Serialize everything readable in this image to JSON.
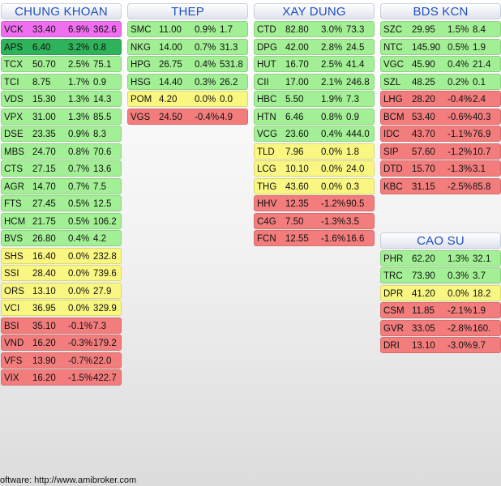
{
  "columns": [
    {
      "groups": [
        {
          "title": "CHUNG KHOAN",
          "rows": [
            [
              "VCK",
              "33.40",
              "6.9%",
              "362.6",
              "m"
            ],
            [
              "APS",
              "6.40",
              "3.2%",
              "0.8",
              "g-dark"
            ],
            [
              "TCX",
              "50.70",
              "2.5%",
              "75.1",
              "g"
            ],
            [
              "TCI",
              "8.75",
              "1.7%",
              "0.9",
              "g"
            ],
            [
              "VDS",
              "15.30",
              "1.3%",
              "14.3",
              "g"
            ],
            [
              "VPX",
              "31.00",
              "1.3%",
              "85.5",
              "g"
            ],
            [
              "DSE",
              "23.35",
              "0.9%",
              "8.3",
              "g"
            ],
            [
              "MBS",
              "24.70",
              "0.8%",
              "70.6",
              "g"
            ],
            [
              "CTS",
              "27.15",
              "0.7%",
              "13.6",
              "g"
            ],
            [
              "AGR",
              "14.70",
              "0.7%",
              "7.5",
              "g"
            ],
            [
              "FTS",
              "27.45",
              "0.5%",
              "12.5",
              "g"
            ],
            [
              "HCM",
              "21.75",
              "0.5%",
              "106.2",
              "g"
            ],
            [
              "BVS",
              "26.80",
              "0.4%",
              "4.2",
              "g"
            ],
            [
              "SHS",
              "16.40",
              "0.0%",
              "232.8",
              "y"
            ],
            [
              "SSI",
              "28.40",
              "0.0%",
              "739.6",
              "y"
            ],
            [
              "ORS",
              "13.10",
              "0.0%",
              "27.9",
              "y"
            ],
            [
              "VCI",
              "36.95",
              "0.0%",
              "329.9",
              "y"
            ],
            [
              "BSI",
              "35.10",
              "-0.1%",
              "7.3",
              "r"
            ],
            [
              "VND",
              "16.20",
              "-0.3%",
              "179.2",
              "r"
            ],
            [
              "VFS",
              "13.90",
              "-0.7%",
              "22.0",
              "r"
            ],
            [
              "VIX",
              "16.20",
              "-1.5%",
              "422.7",
              "r"
            ]
          ]
        }
      ]
    },
    {
      "groups": [
        {
          "title": "THEP",
          "rows": [
            [
              "SMC",
              "11.00",
              "0.9%",
              "1.7",
              "g"
            ],
            [
              "NKG",
              "14.00",
              "0.7%",
              "31.3",
              "g"
            ],
            [
              "HPG",
              "26.75",
              "0.4%",
              "531.8",
              "g"
            ],
            [
              "HSG",
              "14.40",
              "0.3%",
              "26.2",
              "g"
            ],
            [
              "POM",
              "4.20",
              "0.0%",
              "0.0",
              "y"
            ],
            [
              "VGS",
              "24.50",
              "-0.4%",
              "4.9",
              "r"
            ]
          ]
        }
      ]
    },
    {
      "groups": [
        {
          "title": "XAY DUNG",
          "rows": [
            [
              "CTD",
              "82.80",
              "3.0%",
              "73.3",
              "g"
            ],
            [
              "DPG",
              "42.00",
              "2.8%",
              "24.5",
              "g"
            ],
            [
              "HUT",
              "16.70",
              "2.5%",
              "41.4",
              "g"
            ],
            [
              "CII",
              "17.00",
              "2.1%",
              "246.8",
              "g"
            ],
            [
              "HBC",
              "5.50",
              "1.9%",
              "7.3",
              "g"
            ],
            [
              "HTN",
              "6.46",
              "0.8%",
              "0.9",
              "g"
            ],
            [
              "VCG",
              "23.60",
              "0.4%",
              "444.0",
              "g"
            ],
            [
              "TLD",
              "7.96",
              "0.0%",
              "1.8",
              "y"
            ],
            [
              "LCG",
              "10.10",
              "0.0%",
              "24.0",
              "y"
            ],
            [
              "THG",
              "43.60",
              "0.0%",
              "0.3",
              "y"
            ],
            [
              "HHV",
              "12.35",
              "-1.2%",
              "90.5",
              "r"
            ],
            [
              "C4G",
              "7.50",
              "-1.3%",
              "3.5",
              "r"
            ],
            [
              "FCN",
              "12.55",
              "-1.6%",
              "16.6",
              "r"
            ]
          ]
        }
      ]
    },
    {
      "groups": [
        {
          "title": "BDS KCN",
          "rows": [
            [
              "SZC",
              "29.95",
              "1.5%",
              "8.4",
              "g"
            ],
            [
              "NTC",
              "145.90",
              "0.5%",
              "1.9",
              "g"
            ],
            [
              "VGC",
              "45.90",
              "0.4%",
              "21.4",
              "g"
            ],
            [
              "SZL",
              "48.25",
              "0.2%",
              "0.1",
              "g"
            ],
            [
              "LHG",
              "28.20",
              "-0.4%",
              "2.4",
              "r"
            ],
            [
              "BCM",
              "53.40",
              "-0.6%",
              "40.3",
              "r"
            ],
            [
              "IDC",
              "43.70",
              "-1.1%",
              "76.9",
              "r"
            ],
            [
              "SIP",
              "57.60",
              "-1.2%",
              "10.7",
              "r"
            ],
            [
              "DTD",
              "15.70",
              "-1.3%",
              "3.1",
              "r"
            ],
            [
              "KBC",
              "31.15",
              "-2.5%",
              "85.8",
              "r"
            ]
          ]
        },
        {
          "title": "CAO SU",
          "rows": [
            [
              "PHR",
              "62.20",
              "1.3%",
              "32.1",
              "g"
            ],
            [
              "TRC",
              "73.90",
              "0.3%",
              "3.7",
              "g"
            ],
            [
              "DPR",
              "41.20",
              "0.0%",
              "18.2",
              "y"
            ],
            [
              "CSM",
              "11.85",
              "-2.1%",
              "1.9",
              "r"
            ],
            [
              "GVR",
              "33.05",
              "-2.8%",
              "160.",
              "r"
            ],
            [
              "DRI",
              "13.10",
              "-3.0%",
              "9.7",
              "r"
            ]
          ]
        }
      ]
    }
  ],
  "footer": "oftware: http://www.amibroker.com"
}
